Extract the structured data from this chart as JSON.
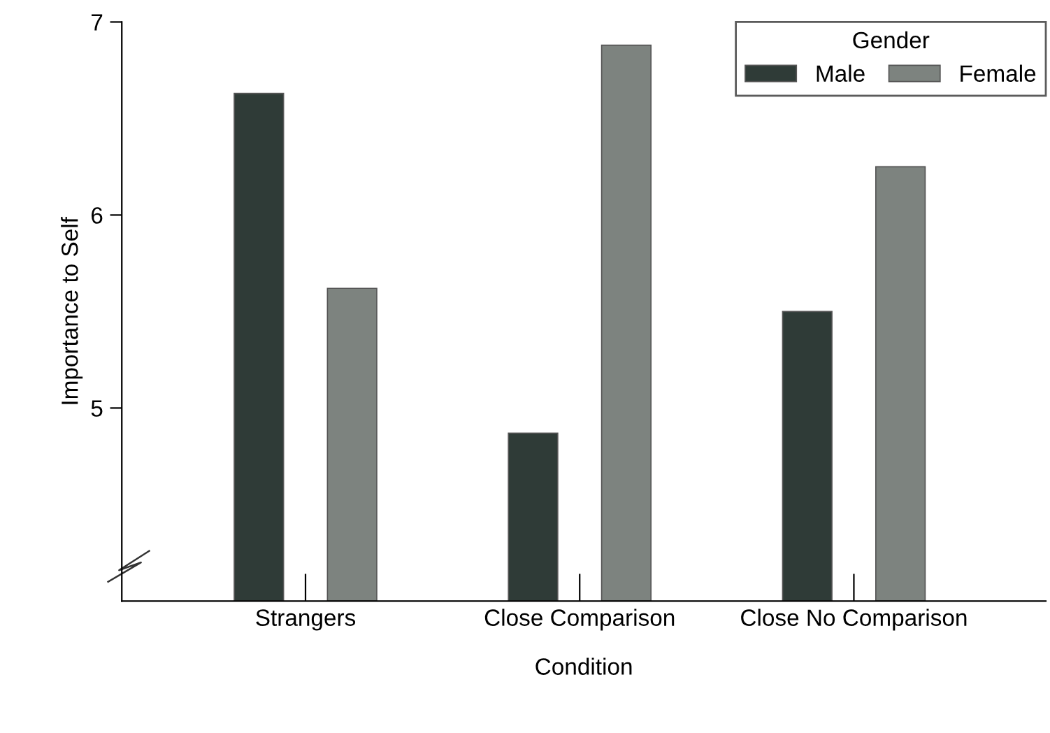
{
  "chart_data": {
    "type": "bar",
    "xlabel": "Condition",
    "ylabel": "Importance to Self",
    "legend_title": "Gender",
    "categories": [
      "Strangers",
      "Close Comparison",
      "Close No Comparison"
    ],
    "series": [
      {
        "name": "Male",
        "color": "#2f3b37",
        "values": [
          6.63,
          4.87,
          5.5
        ]
      },
      {
        "name": "Female",
        "color": "#7d837f",
        "values": [
          5.62,
          6.88,
          6.25
        ]
      }
    ],
    "ylim": [
      4,
      7
    ],
    "yticks": [
      5,
      6,
      7
    ],
    "grid": false,
    "legend": "top right"
  }
}
